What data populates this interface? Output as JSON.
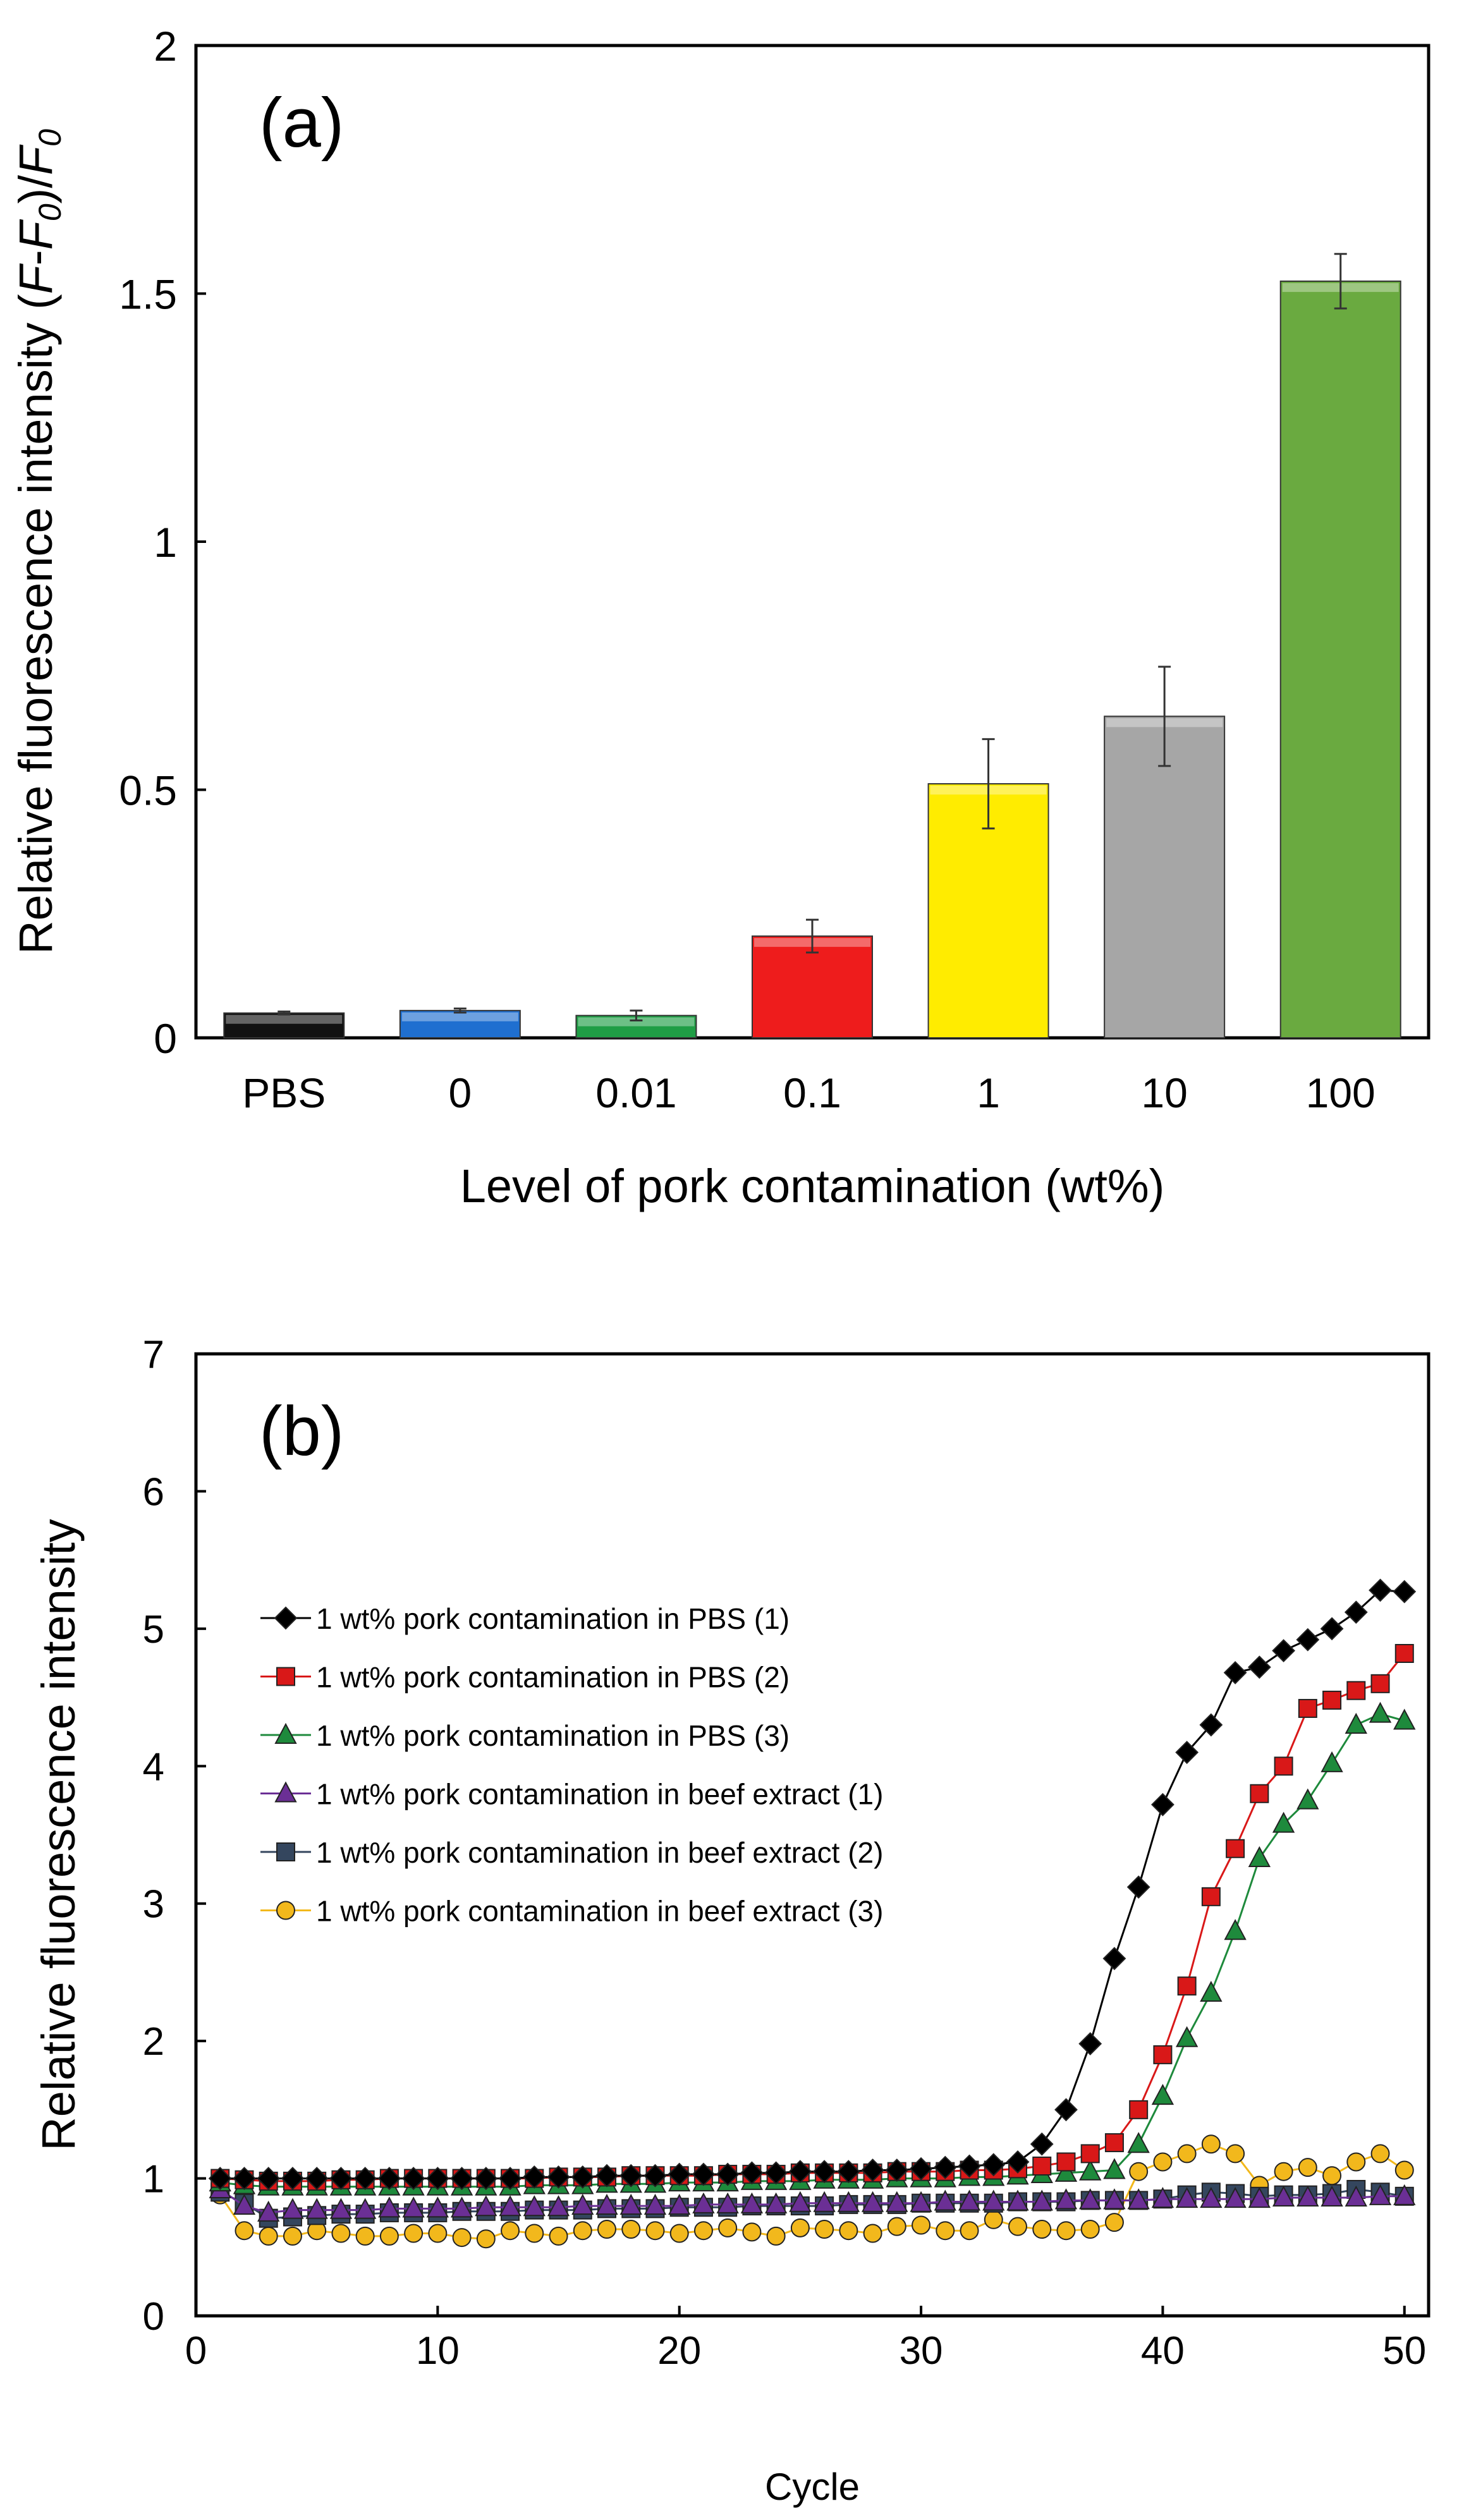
{
  "chart_data": [
    {
      "type": "bar",
      "panel_label": "(a)",
      "categories": [
        "PBS",
        "0",
        "0.01",
        "0.1",
        "1",
        "10",
        "100"
      ],
      "values": [
        0.05,
        0.055,
        0.045,
        0.205,
        0.512,
        0.648,
        1.525
      ],
      "errors": [
        0.003,
        0.004,
        0.01,
        0.033,
        0.09,
        0.1,
        0.055
      ],
      "colors": [
        "#111111",
        "#1f6fd0",
        "#1f9e45",
        "#ee1c1c",
        "#ffec00",
        "#a6a6a6",
        "#6aaa40"
      ],
      "y_ticks": [
        "0",
        "0.5",
        "1",
        "1.5",
        "2"
      ],
      "ylim": [
        0,
        2
      ],
      "ylabel": {
        "pre": "Relative fluorescence intensity (",
        "it1": "F",
        "mid": "-",
        "it2": "F",
        "sub1": "0",
        "post": ")/",
        "it3": "F",
        "sub2": "0"
      },
      "xlabel": "Level of pork contamination (wt%)",
      "grid": false
    },
    {
      "type": "line",
      "panel_label": "(b)",
      "xlabel": "Cycle",
      "ylabel": "Relative fluorescence intensity",
      "xlim": [
        0,
        51
      ],
      "ylim": [
        0,
        7
      ],
      "x_ticks": [
        "0",
        "10",
        "20",
        "30",
        "40",
        "50"
      ],
      "y_ticks": [
        "0",
        "1",
        "2",
        "3",
        "4",
        "5",
        "6",
        "7"
      ],
      "x": [
        1,
        2,
        3,
        4,
        5,
        6,
        7,
        8,
        9,
        10,
        11,
        12,
        13,
        14,
        15,
        16,
        17,
        18,
        19,
        20,
        21,
        22,
        23,
        24,
        25,
        26,
        27,
        28,
        29,
        30,
        31,
        32,
        33,
        34,
        35,
        36,
        37,
        38,
        39,
        40,
        41,
        42,
        43,
        44,
        45,
        46,
        47,
        48,
        49,
        50
      ],
      "legend_position": "upper-left",
      "grid": false,
      "series": [
        {
          "name": "1 wt% pork contamination in PBS (1)",
          "color": "#000000",
          "marker": "diamond",
          "values": [
            1.0,
            1.0,
            1.0,
            1.0,
            1.0,
            1.0,
            1.0,
            1.0,
            1.0,
            1.0,
            1.0,
            1.0,
            1.0,
            1.01,
            1.01,
            1.01,
            1.02,
            1.02,
            1.02,
            1.03,
            1.03,
            1.03,
            1.04,
            1.04,
            1.05,
            1.05,
            1.05,
            1.06,
            1.06,
            1.07,
            1.08,
            1.09,
            1.1,
            1.12,
            1.25,
            1.5,
            1.98,
            2.6,
            3.12,
            3.72,
            4.1,
            4.3,
            4.68,
            4.72,
            4.84,
            4.92,
            5.0,
            5.12,
            5.28,
            5.27
          ]
        },
        {
          "name": "1 wt% pork contamination in PBS (2)",
          "color": "#d91818",
          "marker": "square",
          "values": [
            1.0,
            0.99,
            0.98,
            0.98,
            0.98,
            0.99,
            0.99,
            1.0,
            1.0,
            1.0,
            1.0,
            1.0,
            1.0,
            1.0,
            1.01,
            1.01,
            1.01,
            1.02,
            1.02,
            1.02,
            1.02,
            1.03,
            1.03,
            1.03,
            1.04,
            1.04,
            1.04,
            1.04,
            1.05,
            1.05,
            1.05,
            1.06,
            1.06,
            1.07,
            1.09,
            1.12,
            1.18,
            1.26,
            1.5,
            1.9,
            2.4,
            3.05,
            3.4,
            3.8,
            4.0,
            4.42,
            4.48,
            4.55,
            4.6,
            4.82
          ]
        },
        {
          "name": "1 wt% pork contamination in PBS (3)",
          "color": "#1e8a3c",
          "marker": "triangle",
          "values": [
            0.97,
            0.95,
            0.94,
            0.94,
            0.94,
            0.94,
            0.94,
            0.94,
            0.94,
            0.94,
            0.94,
            0.94,
            0.94,
            0.95,
            0.95,
            0.95,
            0.96,
            0.96,
            0.96,
            0.97,
            0.97,
            0.97,
            0.98,
            0.98,
            0.98,
            0.99,
            0.99,
            0.99,
            1.0,
            1.0,
            1.0,
            1.01,
            1.01,
            1.02,
            1.03,
            1.04,
            1.05,
            1.06,
            1.25,
            1.6,
            2.02,
            2.35,
            2.8,
            3.33,
            3.58,
            3.75,
            4.02,
            4.3,
            4.38,
            4.33
          ]
        },
        {
          "name": "1 wt% pork contamination in beef extract (1)",
          "color": "#6b2f95",
          "marker": "triangle",
          "values": [
            0.92,
            0.8,
            0.75,
            0.77,
            0.77,
            0.77,
            0.77,
            0.78,
            0.78,
            0.78,
            0.78,
            0.79,
            0.79,
            0.79,
            0.79,
            0.8,
            0.8,
            0.8,
            0.8,
            0.8,
            0.81,
            0.81,
            0.81,
            0.81,
            0.82,
            0.82,
            0.82,
            0.82,
            0.82,
            0.82,
            0.83,
            0.83,
            0.83,
            0.83,
            0.83,
            0.84,
            0.84,
            0.84,
            0.84,
            0.85,
            0.85,
            0.85,
            0.85,
            0.85,
            0.86,
            0.86,
            0.86,
            0.86,
            0.87,
            0.87
          ]
        },
        {
          "name": "1 wt% pork contamination in beef extract (2)",
          "color": "#34465e",
          "marker": "square",
          "values": [
            0.9,
            0.82,
            0.71,
            0.72,
            0.73,
            0.74,
            0.74,
            0.75,
            0.75,
            0.75,
            0.76,
            0.76,
            0.76,
            0.77,
            0.77,
            0.77,
            0.78,
            0.78,
            0.78,
            0.79,
            0.79,
            0.79,
            0.8,
            0.8,
            0.8,
            0.8,
            0.81,
            0.81,
            0.81,
            0.82,
            0.82,
            0.82,
            0.82,
            0.83,
            0.83,
            0.83,
            0.84,
            0.84,
            0.84,
            0.85,
            0.88,
            0.9,
            0.89,
            0.87,
            0.88,
            0.88,
            0.89,
            0.92,
            0.9,
            0.87
          ]
        },
        {
          "name": "1 wt% pork contamination in beef extract (3)",
          "color": "#f2b81c",
          "marker": "circle",
          "values": [
            0.88,
            0.62,
            0.58,
            0.58,
            0.62,
            0.6,
            0.58,
            0.58,
            0.6,
            0.6,
            0.57,
            0.56,
            0.62,
            0.6,
            0.58,
            0.62,
            0.63,
            0.63,
            0.62,
            0.6,
            0.62,
            0.64,
            0.61,
            0.58,
            0.64,
            0.63,
            0.62,
            0.6,
            0.65,
            0.66,
            0.62,
            0.62,
            0.7,
            0.65,
            0.63,
            0.62,
            0.63,
            0.68,
            1.05,
            1.12,
            1.18,
            1.25,
            1.18,
            0.95,
            1.05,
            1.08,
            1.02,
            1.12,
            1.18,
            1.06
          ]
        }
      ]
    }
  ]
}
